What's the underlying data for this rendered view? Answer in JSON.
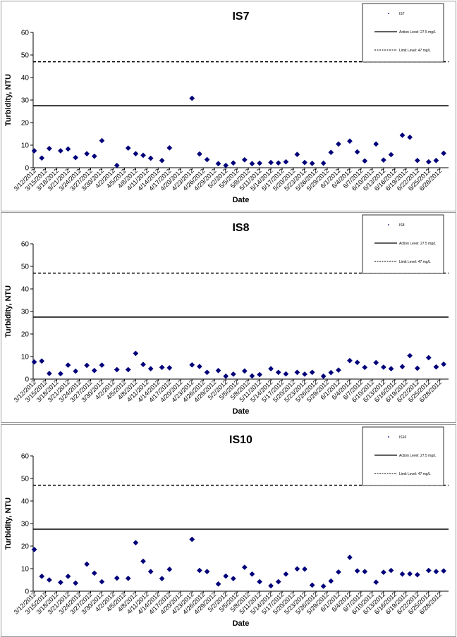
{
  "chart_data": [
    {
      "type": "scatter",
      "title": "IS7",
      "xlabel": "Date",
      "ylabel": "Turbidity, NTU",
      "ylim": [
        0,
        60
      ],
      "yticks": [
        0,
        10,
        20,
        30,
        40,
        50,
        60
      ],
      "x_tick_labels": [
        "3/12/2012",
        "3/15/2012",
        "3/18/2012",
        "3/21/2012",
        "3/24/2012",
        "3/27/2012",
        "3/30/2012",
        "4/2/2012",
        "4/5/2012",
        "4/8/2012",
        "4/11/2012",
        "4/14/2012",
        "4/17/2012",
        "4/20/2012",
        "4/23/2012",
        "4/26/2012",
        "4/29/2012",
        "5/2/2012",
        "5/5/2012",
        "5/8/2012",
        "5/11/2012",
        "5/14/2012",
        "5/17/2012",
        "5/20/2012",
        "5/23/2012",
        "5/26/2012",
        "5/29/2012",
        "6/1/2012",
        "6/4/2012",
        "6/7/2012",
        "6/10/2012",
        "6/13/2012",
        "6/16/2012",
        "6/19/2012",
        "6/22/2012",
        "6/25/2012",
        "6/28/2012"
      ],
      "legend": {
        "position": "top-right",
        "entries": [
          "IS7",
          "Action Level: 27.5 mg/L",
          "Limit Level: 47 mg/L"
        ]
      },
      "action_level": 27.5,
      "limit_level": 47,
      "points": [
        {
          "x": "3/12/2012",
          "y": 7.5
        },
        {
          "x": "3/14/2012",
          "y": 4.3
        },
        {
          "x": "3/16/2012",
          "y": 8.5
        },
        {
          "x": "3/19/2012",
          "y": 7.5
        },
        {
          "x": "3/21/2012",
          "y": 8.3
        },
        {
          "x": "3/23/2012",
          "y": 4.5
        },
        {
          "x": "3/26/2012",
          "y": 6.2
        },
        {
          "x": "3/28/2012",
          "y": 5.1
        },
        {
          "x": "3/30/2012",
          "y": 12.0
        },
        {
          "x": "4/3/2012",
          "y": 1.0
        },
        {
          "x": "4/6/2012",
          "y": 8.7
        },
        {
          "x": "4/8/2012",
          "y": 6.2
        },
        {
          "x": "4/10/2012",
          "y": 5.5
        },
        {
          "x": "4/12/2012",
          "y": 4.2
        },
        {
          "x": "4/15/2012",
          "y": 3.2
        },
        {
          "x": "4/17/2012",
          "y": 8.8
        },
        {
          "x": "4/23/2012",
          "y": 30.8
        },
        {
          "x": "4/25/2012",
          "y": 6.1
        },
        {
          "x": "4/27/2012",
          "y": 3.6
        },
        {
          "x": "4/30/2012",
          "y": 1.8
        },
        {
          "x": "5/2/2012",
          "y": 1.0
        },
        {
          "x": "5/4/2012",
          "y": 2.1
        },
        {
          "x": "5/7/2012",
          "y": 3.5
        },
        {
          "x": "5/9/2012",
          "y": 1.8
        },
        {
          "x": "5/11/2012",
          "y": 2.0
        },
        {
          "x": "5/14/2012",
          "y": 2.3
        },
        {
          "x": "5/16/2012",
          "y": 2.1
        },
        {
          "x": "5/18/2012",
          "y": 2.6
        },
        {
          "x": "5/21/2012",
          "y": 5.9
        },
        {
          "x": "5/23/2012",
          "y": 2.3
        },
        {
          "x": "5/25/2012",
          "y": 1.9
        },
        {
          "x": "5/28/2012",
          "y": 2.0
        },
        {
          "x": "5/30/2012",
          "y": 6.8
        },
        {
          "x": "6/1/2012",
          "y": 10.5
        },
        {
          "x": "6/4/2012",
          "y": 11.8
        },
        {
          "x": "6/6/2012",
          "y": 7.0
        },
        {
          "x": "6/8/2012",
          "y": 3.0
        },
        {
          "x": "6/11/2012",
          "y": 10.5
        },
        {
          "x": "6/13/2012",
          "y": 3.4
        },
        {
          "x": "6/15/2012",
          "y": 5.8
        },
        {
          "x": "6/18/2012",
          "y": 14.4
        },
        {
          "x": "6/20/2012",
          "y": 13.5
        },
        {
          "x": "6/22/2012",
          "y": 3.2
        },
        {
          "x": "6/25/2012",
          "y": 2.6
        },
        {
          "x": "6/27/2012",
          "y": 3.2
        },
        {
          "x": "6/29/2012",
          "y": 6.4
        }
      ]
    },
    {
      "type": "scatter",
      "title": "IS8",
      "xlabel": "Date",
      "ylabel": "Turbidity, NTU",
      "ylim": [
        0,
        60
      ],
      "yticks": [
        0,
        10,
        20,
        30,
        40,
        50,
        60
      ],
      "x_tick_labels": [
        "3/12/2012",
        "3/15/2012",
        "3/18/2012",
        "3/21/2012",
        "3/24/2012",
        "3/27/2012",
        "3/30/2012",
        "4/2/2012",
        "4/5/2012",
        "4/8/2012",
        "4/11/2012",
        "4/14/2012",
        "4/17/2012",
        "4/20/2012",
        "4/23/2012",
        "4/26/2012",
        "4/29/2012",
        "5/2/2012",
        "5/5/2012",
        "5/8/2012",
        "5/11/2012",
        "5/14/2012",
        "5/17/2012",
        "5/20/2012",
        "5/23/2012",
        "5/26/2012",
        "5/29/2012",
        "6/1/2012",
        "6/4/2012",
        "6/7/2012",
        "6/10/2012",
        "6/13/2012",
        "6/16/2012",
        "6/19/2012",
        "6/22/2012",
        "6/25/2012",
        "6/28/2012"
      ],
      "legend": {
        "position": "top-right",
        "entries": [
          "IS8",
          "Action Level: 27.5 mg/L",
          "Limit Level: 47 mg/L"
        ]
      },
      "action_level": 27.5,
      "limit_level": 47,
      "points": [
        {
          "x": "3/12/2012",
          "y": 7.6
        },
        {
          "x": "3/14/2012",
          "y": 8.0
        },
        {
          "x": "3/16/2012",
          "y": 2.5
        },
        {
          "x": "3/19/2012",
          "y": 2.4
        },
        {
          "x": "3/21/2012",
          "y": 6.2
        },
        {
          "x": "3/23/2012",
          "y": 3.5
        },
        {
          "x": "3/26/2012",
          "y": 6.1
        },
        {
          "x": "3/28/2012",
          "y": 3.8
        },
        {
          "x": "3/30/2012",
          "y": 6.2
        },
        {
          "x": "4/3/2012",
          "y": 4.2
        },
        {
          "x": "4/6/2012",
          "y": 4.2
        },
        {
          "x": "4/8/2012",
          "y": 11.4
        },
        {
          "x": "4/10/2012",
          "y": 6.5
        },
        {
          "x": "4/12/2012",
          "y": 4.6
        },
        {
          "x": "4/15/2012",
          "y": 5.2
        },
        {
          "x": "4/17/2012",
          "y": 5.0
        },
        {
          "x": "4/23/2012",
          "y": 6.3
        },
        {
          "x": "4/25/2012",
          "y": 5.6
        },
        {
          "x": "4/27/2012",
          "y": 3.0
        },
        {
          "x": "4/30/2012",
          "y": 3.8
        },
        {
          "x": "5/2/2012",
          "y": 1.3
        },
        {
          "x": "5/4/2012",
          "y": 2.2
        },
        {
          "x": "5/7/2012",
          "y": 3.6
        },
        {
          "x": "5/9/2012",
          "y": 1.4
        },
        {
          "x": "5/11/2012",
          "y": 2.0
        },
        {
          "x": "5/14/2012",
          "y": 4.6
        },
        {
          "x": "5/16/2012",
          "y": 3.0
        },
        {
          "x": "5/18/2012",
          "y": 2.3
        },
        {
          "x": "5/21/2012",
          "y": 3.0
        },
        {
          "x": "5/23/2012",
          "y": 2.2
        },
        {
          "x": "5/25/2012",
          "y": 3.0
        },
        {
          "x": "5/28/2012",
          "y": 1.3
        },
        {
          "x": "5/30/2012",
          "y": 2.9
        },
        {
          "x": "6/1/2012",
          "y": 4.0
        },
        {
          "x": "6/4/2012",
          "y": 8.2
        },
        {
          "x": "6/6/2012",
          "y": 7.4
        },
        {
          "x": "6/8/2012",
          "y": 5.2
        },
        {
          "x": "6/11/2012",
          "y": 7.3
        },
        {
          "x": "6/13/2012",
          "y": 5.3
        },
        {
          "x": "6/15/2012",
          "y": 4.6
        },
        {
          "x": "6/18/2012",
          "y": 5.5
        },
        {
          "x": "6/20/2012",
          "y": 10.4
        },
        {
          "x": "6/22/2012",
          "y": 4.8
        },
        {
          "x": "6/25/2012",
          "y": 9.5
        },
        {
          "x": "6/27/2012",
          "y": 5.4
        },
        {
          "x": "6/29/2012",
          "y": 6.6
        }
      ]
    },
    {
      "type": "scatter",
      "title": "IS10",
      "xlabel": "Date",
      "ylabel": "Turbidity, NTU",
      "ylim": [
        0,
        60
      ],
      "yticks": [
        0,
        10,
        20,
        30,
        40,
        50,
        60
      ],
      "x_tick_labels": [
        "3/12/2012",
        "3/15/2012",
        "3/18/2012",
        "3/21/2012",
        "3/24/2012",
        "3/27/2012",
        "3/30/2012",
        "4/2/2012",
        "4/5/2012",
        "4/8/2012",
        "4/11/2012",
        "4/14/2012",
        "4/17/2012",
        "4/20/2012",
        "4/23/2012",
        "4/26/2012",
        "4/29/2012",
        "5/2/2012",
        "5/5/2012",
        "5/8/2012",
        "5/11/2012",
        "5/14/2012",
        "5/17/2012",
        "5/20/2012",
        "5/23/2012",
        "5/26/2012",
        "5/29/2012",
        "6/1/2012",
        "6/4/2012",
        "6/7/2012",
        "6/10/2012",
        "6/13/2012",
        "6/16/2012",
        "6/19/2012",
        "6/22/2012",
        "6/25/2012",
        "6/28/2012"
      ],
      "legend": {
        "position": "top-right",
        "entries": [
          "IS10",
          "Action Level: 27.5 mg/L",
          "Limit Level: 47 mg/L"
        ]
      },
      "action_level": 27.5,
      "limit_level": 47,
      "points": [
        {
          "x": "3/12/2012",
          "y": 18.5
        },
        {
          "x": "3/14/2012",
          "y": 6.6
        },
        {
          "x": "3/16/2012",
          "y": 5.0
        },
        {
          "x": "3/19/2012",
          "y": 3.9
        },
        {
          "x": "3/21/2012",
          "y": 6.6
        },
        {
          "x": "3/23/2012",
          "y": 3.6
        },
        {
          "x": "3/26/2012",
          "y": 12.0
        },
        {
          "x": "3/28/2012",
          "y": 8.0
        },
        {
          "x": "3/30/2012",
          "y": 4.2
        },
        {
          "x": "4/3/2012",
          "y": 5.8
        },
        {
          "x": "4/6/2012",
          "y": 5.7
        },
        {
          "x": "4/8/2012",
          "y": 21.5
        },
        {
          "x": "4/10/2012",
          "y": 13.3
        },
        {
          "x": "4/12/2012",
          "y": 8.7
        },
        {
          "x": "4/15/2012",
          "y": 5.6
        },
        {
          "x": "4/17/2012",
          "y": 9.7
        },
        {
          "x": "4/23/2012",
          "y": 23.0
        },
        {
          "x": "4/25/2012",
          "y": 9.2
        },
        {
          "x": "4/27/2012",
          "y": 8.7
        },
        {
          "x": "4/30/2012",
          "y": 3.2
        },
        {
          "x": "5/2/2012",
          "y": 6.7
        },
        {
          "x": "5/4/2012",
          "y": 5.6
        },
        {
          "x": "5/7/2012",
          "y": 10.6
        },
        {
          "x": "5/9/2012",
          "y": 7.6
        },
        {
          "x": "5/11/2012",
          "y": 4.2
        },
        {
          "x": "5/14/2012",
          "y": 2.4
        },
        {
          "x": "5/16/2012",
          "y": 4.2
        },
        {
          "x": "5/18/2012",
          "y": 7.6
        },
        {
          "x": "5/21/2012",
          "y": 9.9
        },
        {
          "x": "5/23/2012",
          "y": 9.8
        },
        {
          "x": "5/25/2012",
          "y": 2.7
        },
        {
          "x": "5/28/2012",
          "y": 2.2
        },
        {
          "x": "5/30/2012",
          "y": 4.5
        },
        {
          "x": "6/1/2012",
          "y": 8.5
        },
        {
          "x": "6/4/2012",
          "y": 15.0
        },
        {
          "x": "6/6/2012",
          "y": 9.0
        },
        {
          "x": "6/8/2012",
          "y": 8.7
        },
        {
          "x": "6/11/2012",
          "y": 4.0
        },
        {
          "x": "6/13/2012",
          "y": 8.4
        },
        {
          "x": "6/15/2012",
          "y": 9.2
        },
        {
          "x": "6/18/2012",
          "y": 7.6
        },
        {
          "x": "6/20/2012",
          "y": 7.7
        },
        {
          "x": "6/22/2012",
          "y": 7.3
        },
        {
          "x": "6/25/2012",
          "y": 9.2
        },
        {
          "x": "6/27/2012",
          "y": 8.7
        },
        {
          "x": "6/29/2012",
          "y": 9.0
        }
      ]
    }
  ],
  "colors": {
    "marker": "#00007a",
    "line": "#000000",
    "axis": "#000000"
  }
}
